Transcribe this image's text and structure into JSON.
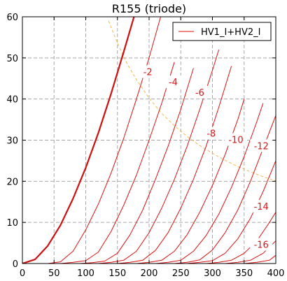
{
  "chart_data": {
    "type": "line",
    "title": "R155 (triode)",
    "xlabel": "",
    "ylabel": "",
    "xlim": [
      0,
      400
    ],
    "ylim": [
      0,
      60
    ],
    "xticks": [
      "0",
      "50",
      "100",
      "150",
      "200",
      "250",
      "300",
      "350",
      "400"
    ],
    "yticks": [
      "0",
      "10",
      "20",
      "30",
      "40",
      "50",
      "60"
    ],
    "grid": true,
    "legend": {
      "placement": "top-right",
      "entries": [
        "HV1_I+HV2_I"
      ]
    },
    "colors": {
      "curve": "#dd1111",
      "heavy_curve": "#cc1111",
      "dissipation": "#f0b84a",
      "grid": "#a8a8a8"
    },
    "series": [
      {
        "name": "HV1_I+HV2_I",
        "heavy": true,
        "x": [
          0,
          20,
          40,
          60,
          80,
          100,
          120,
          140,
          160,
          180
        ],
        "y": [
          0,
          1,
          4.3,
          9.3,
          15.8,
          23.3,
          31.8,
          41.3,
          51.5,
          62
        ]
      },
      {
        "x": [
          40,
          60,
          80,
          100,
          120,
          140,
          160,
          180,
          200,
          220
        ],
        "y": [
          0,
          0.4,
          3,
          8.2,
          14.5,
          22,
          30.5,
          40,
          50,
          61
        ]
      },
      {
        "x": [
          60,
          80,
          100,
          120,
          140,
          160,
          180,
          200,
          220,
          240
        ],
        "y": [
          0,
          0.3,
          0.7,
          2.8,
          7.8,
          14.2,
          21.5,
          30,
          39,
          49
        ]
      },
      {
        "x": [
          90,
          110,
          130,
          150,
          170,
          190,
          210,
          230,
          250,
          270
        ],
        "y": [
          0,
          0.2,
          0.6,
          2.5,
          7,
          13,
          20.5,
          28.5,
          37.5,
          47.5
        ]
      },
      {
        "x": [
          120,
          140,
          160,
          180,
          200,
          220,
          240,
          260,
          280,
          300,
          310
        ],
        "y": [
          0,
          0.3,
          0.8,
          3,
          7.5,
          13.5,
          20.5,
          28.5,
          37.5,
          47,
          52
        ]
      },
      {
        "x": [
          150,
          170,
          190,
          210,
          230,
          250,
          270,
          290,
          310,
          330
        ],
        "y": [
          0,
          0.3,
          0.8,
          3.2,
          7.5,
          13.5,
          20.5,
          28.5,
          38,
          48
        ]
      },
      {
        "x": [
          180,
          200,
          220,
          240,
          260,
          280,
          300,
          320,
          340,
          350
        ],
        "y": [
          0,
          0.3,
          0.8,
          3,
          7,
          12.5,
          19,
          26.5,
          35,
          40
        ]
      },
      {
        "x": [
          210,
          230,
          250,
          270,
          290,
          310,
          330,
          350,
          370,
          380
        ],
        "y": [
          0,
          0.3,
          0.8,
          3,
          6.8,
          12,
          18.5,
          26,
          34.5,
          39
        ]
      },
      {
        "x": [
          240,
          260,
          280,
          300,
          320,
          340,
          360,
          380,
          400
        ],
        "y": [
          0,
          0.3,
          0.9,
          3.3,
          7.5,
          13,
          20,
          28,
          36
        ]
      },
      {
        "x": [
          260,
          280,
          300,
          320,
          340,
          360,
          380,
          400
        ],
        "y": [
          0,
          0.3,
          0.7,
          2.5,
          6,
          11,
          17.5,
          25
        ]
      },
      {
        "x": [
          290,
          310,
          330,
          350,
          370,
          390,
          400
        ],
        "y": [
          0,
          0.3,
          0.8,
          2.5,
          5.5,
          10,
          12.5
        ]
      },
      {
        "x": [
          320,
          340,
          360,
          380,
          400
        ],
        "y": [
          0,
          0.3,
          0.8,
          2.5,
          5.5
        ]
      },
      {
        "x": [
          350,
          370,
          390,
          400
        ],
        "y": [
          0,
          0.3,
          0.8,
          2
        ]
      }
    ],
    "dissipation_curve": {
      "x": [
        136,
        150,
        165,
        180,
        200,
        220,
        240,
        260,
        280,
        300,
        320,
        340,
        360,
        380,
        400
      ],
      "y": [
        59,
        53.6,
        48.7,
        44.7,
        40.2,
        36.5,
        33.5,
        30.9,
        28.7,
        26.8,
        25.1,
        23.6,
        22.3,
        21.1,
        20.1
      ]
    },
    "annotations": [
      {
        "text": "-2",
        "x": 198,
        "y": 46.5
      },
      {
        "text": "-4",
        "x": 238,
        "y": 44
      },
      {
        "text": "-6",
        "x": 280,
        "y": 41.5
      },
      {
        "text": "-8",
        "x": 298,
        "y": 31.5
      },
      {
        "text": "-10",
        "x": 337,
        "y": 30
      },
      {
        "text": "-12",
        "x": 377,
        "y": 28.5
      },
      {
        "text": "-14",
        "x": 377,
        "y": 13.8
      },
      {
        "text": "-16",
        "x": 377,
        "y": 4.5
      }
    ]
  }
}
